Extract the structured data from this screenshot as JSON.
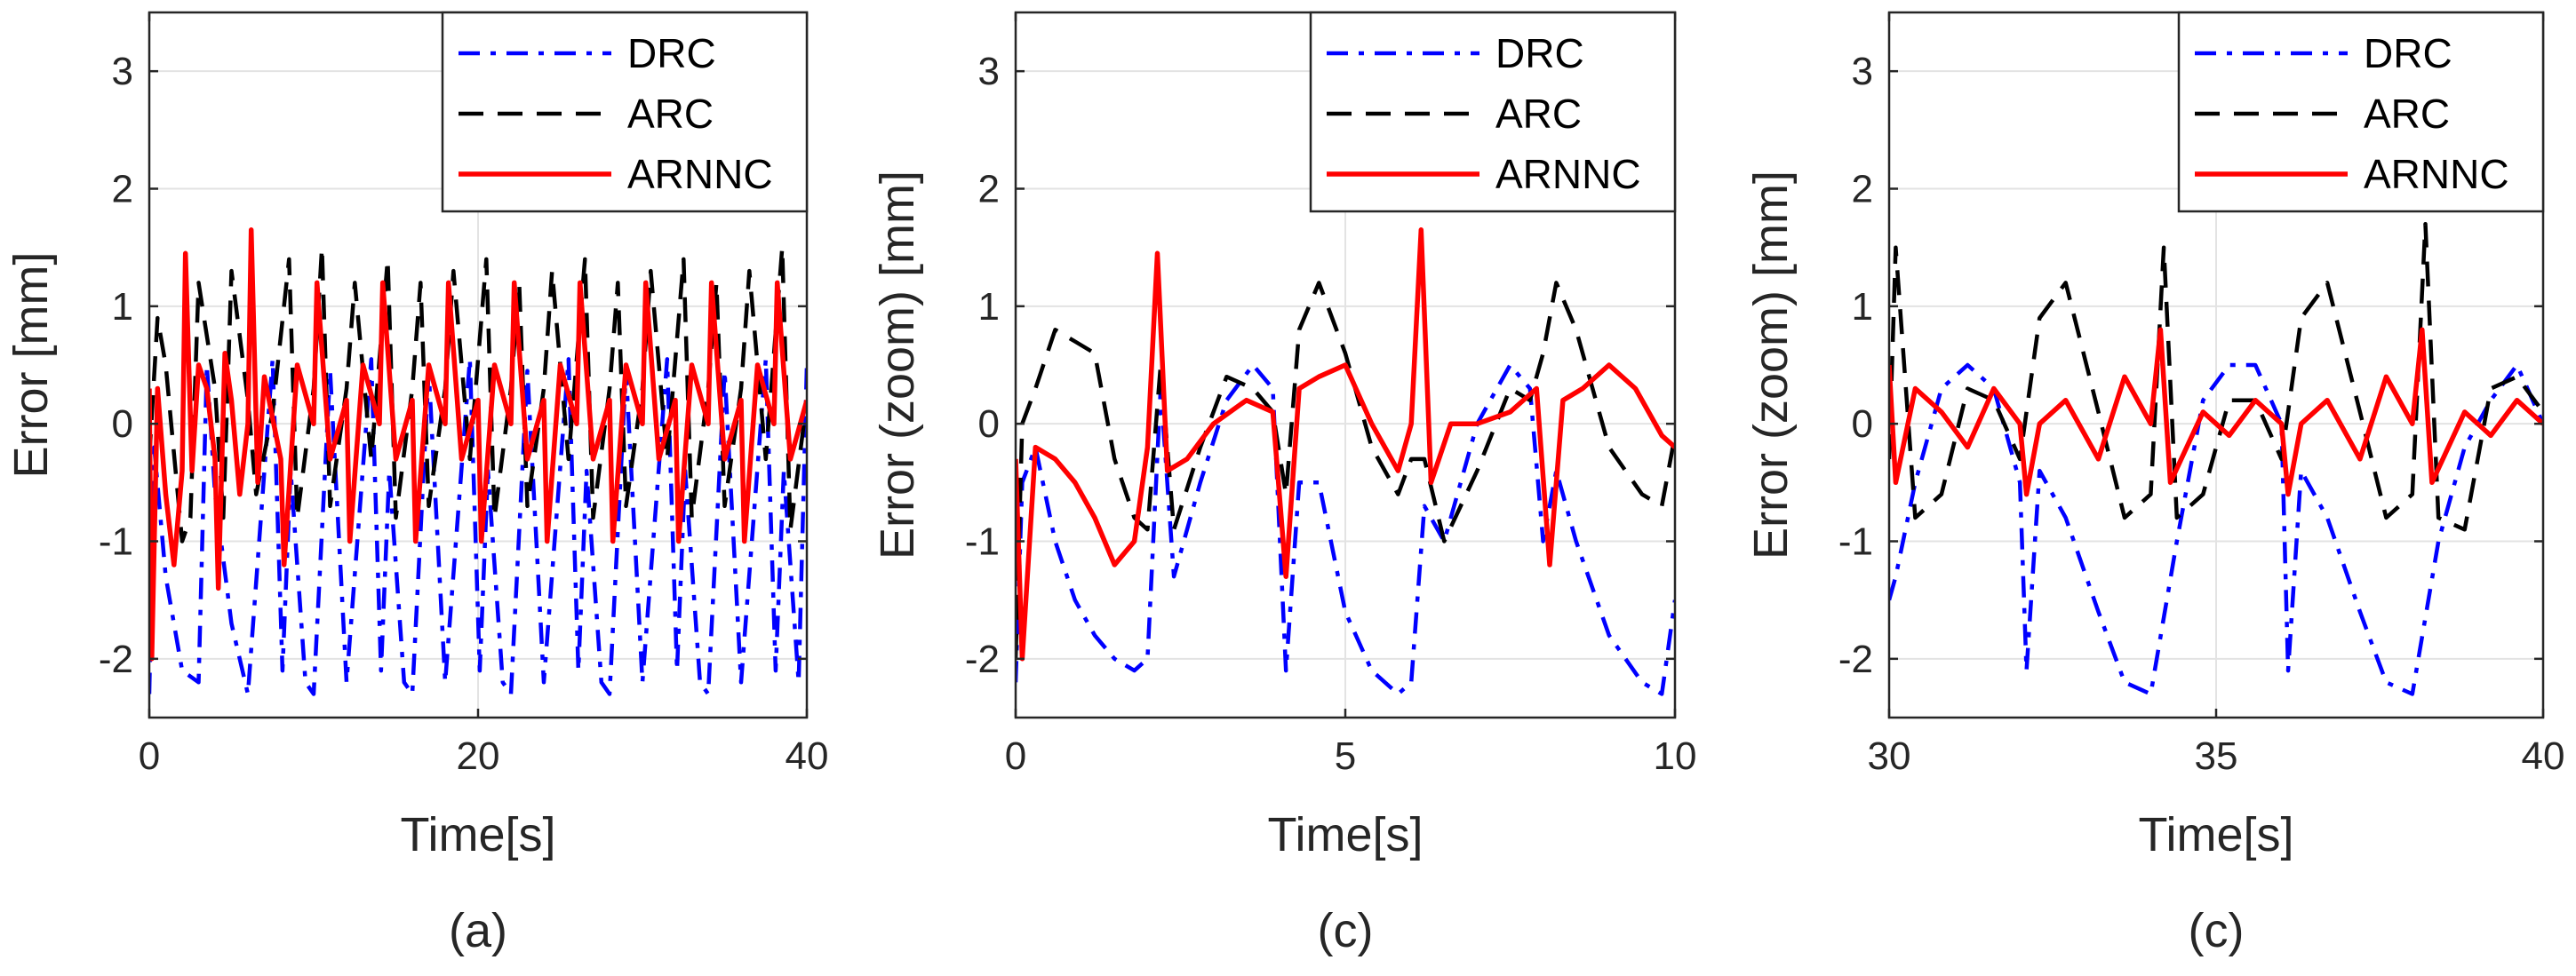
{
  "chart_data": [
    {
      "type": "line",
      "panel_label": "(a)",
      "xlabel": "Time[s]",
      "ylabel": "Error [mm]",
      "xlim": [
        0,
        40
      ],
      "ylim": [
        -2.5,
        3.5
      ],
      "xticks": [
        0,
        20,
        40
      ],
      "xtick_labels": [
        "0",
        "20",
        "40"
      ],
      "yticks": [
        -2,
        -1,
        0,
        1,
        2,
        3
      ],
      "ytick_labels": [
        "-2",
        "-1",
        "0",
        "1",
        "2",
        "3"
      ],
      "grid": true,
      "legend_position": "top-right",
      "legend": [
        "DRC",
        "ARC",
        "ARNNC"
      ],
      "series": [
        {
          "name": "DRC",
          "color": "#0000ff",
          "style": "dash-dot",
          "x": [
            0,
            0.3,
            1,
            2,
            3,
            3.5,
            4,
            5,
            6,
            7.5,
            8.1,
            8.6,
            9.5,
            10,
            11,
            12,
            13.5,
            14.1,
            14.6,
            15.5,
            16,
            17,
            18,
            19.5,
            20.1,
            20.6,
            21.5,
            22,
            23,
            24,
            25.5,
            26.1,
            26.6,
            27.5,
            28,
            29,
            30,
            31.5,
            32.1,
            32.6,
            33.5,
            34,
            35,
            36,
            37.5,
            38.1,
            38.6,
            39.5,
            40
          ],
          "y": [
            -2.3,
            -0.2,
            -1.3,
            -2.1,
            -2.2,
            0.5,
            -0.6,
            -1.7,
            -2.3,
            0.55,
            -2.1,
            -0.4,
            -2.2,
            -2.3,
            0.45,
            -2.2,
            0.55,
            -2.1,
            -0.4,
            -2.2,
            -2.3,
            0.45,
            -2.2,
            0.55,
            -2.1,
            -0.4,
            -2.2,
            -2.3,
            0.45,
            -2.2,
            0.55,
            -2.1,
            -0.4,
            -2.2,
            -2.3,
            0.45,
            -2.2,
            0.55,
            -2.1,
            -0.4,
            -2.2,
            -2.3,
            0.45,
            -2.2,
            0.55,
            -2.1,
            -0.4,
            -2.2,
            0.5
          ]
        },
        {
          "name": "ARC",
          "color": "#000000",
          "style": "dashed",
          "x": [
            0,
            0.5,
            1,
            2,
            2.5,
            3,
            4,
            4.5,
            5,
            6,
            6.5,
            7.5,
            8.5,
            9,
            10,
            10.5,
            11,
            12,
            12.5,
            13.5,
            14.5,
            15,
            16,
            16.5,
            17,
            18,
            18.5,
            19.5,
            20.5,
            21,
            22,
            22.5,
            23,
            24,
            24.5,
            25.5,
            26.5,
            27,
            28,
            28.5,
            29,
            30,
            30.5,
            31.5,
            32.5,
            33,
            34,
            34.5,
            35,
            36,
            36.5,
            37.5,
            38.5,
            39,
            40
          ],
          "y": [
            -0.3,
            0.9,
            0.5,
            -1.0,
            -0.8,
            1.2,
            0.3,
            -0.8,
            1.3,
            0.2,
            -0.6,
            0.1,
            1.4,
            -0.8,
            0.3,
            1.5,
            -0.7,
            0.3,
            1.2,
            -0.3,
            1.4,
            -0.8,
            0.3,
            1.2,
            -0.7,
            0.3,
            1.3,
            -0.3,
            1.4,
            -0.8,
            0.3,
            1.2,
            -0.7,
            0.3,
            1.3,
            -0.3,
            1.4,
            -0.8,
            0.3,
            1.2,
            -0.7,
            0.3,
            1.3,
            -0.3,
            1.4,
            -0.8,
            0.3,
            1.2,
            -0.7,
            0.3,
            1.3,
            -0.3,
            1.5,
            -0.9,
            0.2
          ]
        },
        {
          "name": "ARNNC",
          "color": "#ff0000",
          "style": "solid",
          "x": [
            0,
            0.15,
            0.5,
            1,
            1.5,
            2,
            2.2,
            2.6,
            3,
            3.5,
            4,
            4.2,
            4.6,
            5,
            5.5,
            6,
            6.2,
            6.6,
            7,
            8,
            8.2,
            9,
            10,
            10.2,
            11,
            12,
            12.2,
            13,
            14,
            14.2,
            15,
            16,
            16.2,
            17,
            18,
            18.2,
            19,
            20,
            20.2,
            21,
            22,
            22.2,
            23,
            24,
            24.2,
            25,
            26,
            26.2,
            27,
            28,
            28.2,
            29,
            30,
            30.2,
            31,
            32,
            32.2,
            33,
            34,
            34.2,
            35,
            36,
            36.2,
            37,
            38,
            38.2,
            39,
            40
          ],
          "y": [
            0.3,
            -2.0,
            0.3,
            -0.6,
            -1.2,
            -0.4,
            1.45,
            -0.4,
            0.5,
            0.3,
            -0.3,
            -1.4,
            0.6,
            0.2,
            -0.6,
            0.0,
            1.65,
            -0.5,
            0.4,
            -0.3,
            -1.2,
            0.5,
            0.0,
            1.2,
            -0.3,
            0.2,
            -1.0,
            0.5,
            0.0,
            1.2,
            -0.3,
            0.2,
            -1.0,
            0.5,
            0.0,
            1.2,
            -0.3,
            0.2,
            -1.0,
            0.5,
            0.0,
            1.2,
            -0.3,
            0.2,
            -1.0,
            0.5,
            0.0,
            1.2,
            -0.3,
            0.2,
            -1.0,
            0.5,
            0.0,
            1.2,
            -0.3,
            0.2,
            -1.0,
            0.5,
            0.0,
            1.2,
            -0.3,
            0.2,
            -1.0,
            0.5,
            0.0,
            1.2,
            -0.3,
            0.2
          ]
        }
      ]
    },
    {
      "type": "line",
      "panel_label": "(c)",
      "xlabel": "Time[s]",
      "ylabel": "Error (zoom) [mm]",
      "xlim": [
        0,
        10
      ],
      "ylim": [
        -2.5,
        3.5
      ],
      "xticks": [
        0,
        5,
        10
      ],
      "xtick_labels": [
        "0",
        "5",
        "10"
      ],
      "yticks": [
        -2,
        -1,
        0,
        1,
        2,
        3
      ],
      "ytick_labels": [
        "-2",
        "-1",
        "0",
        "1",
        "2",
        "3"
      ],
      "grid": true,
      "legend_position": "top-right",
      "legend": [
        "DRC",
        "ARC",
        "ARNNC"
      ],
      "series": [
        {
          "name": "DRC",
          "color": "#0000ff",
          "style": "dash-dot",
          "x": [
            0,
            0.1,
            0.3,
            0.6,
            0.9,
            1.2,
            1.5,
            1.8,
            2.0,
            2.2,
            2.4,
            2.8,
            3.2,
            3.6,
            3.9,
            4.1,
            4.3,
            4.6,
            5.0,
            5.4,
            5.8,
            6.0,
            6.2,
            6.5,
            7.0,
            7.5,
            7.8,
            8.0,
            8.2,
            8.5,
            9.0,
            9.5,
            9.8,
            10
          ],
          "y": [
            -2.2,
            -0.5,
            -0.2,
            -1.0,
            -1.5,
            -1.8,
            -2.0,
            -2.1,
            -2.0,
            0.3,
            -1.3,
            -0.5,
            0.2,
            0.5,
            0.3,
            -2.1,
            -0.5,
            -0.5,
            -1.6,
            -2.1,
            -2.3,
            -2.2,
            -0.7,
            -1.0,
            0.0,
            0.5,
            0.3,
            -1.0,
            -0.4,
            -1.0,
            -1.8,
            -2.2,
            -2.3,
            -1.5
          ]
        },
        {
          "name": "ARC",
          "color": "#000000",
          "style": "dashed",
          "x": [
            0,
            0.1,
            0.3,
            0.6,
            0.9,
            1.2,
            1.5,
            1.8,
            2.0,
            2.2,
            2.4,
            2.8,
            3.2,
            3.6,
            3.9,
            4.1,
            4.3,
            4.6,
            5.0,
            5.4,
            5.8,
            6.0,
            6.2,
            6.5,
            7.0,
            7.5,
            7.8,
            8.0,
            8.2,
            8.5,
            9.0,
            9.5,
            9.8,
            10
          ],
          "y": [
            -2.0,
            0.0,
            0.3,
            0.8,
            0.7,
            0.6,
            -0.3,
            -0.8,
            -0.9,
            0.5,
            -0.9,
            -0.2,
            0.4,
            0.3,
            0.1,
            -0.6,
            0.8,
            1.2,
            0.6,
            -0.2,
            -0.6,
            -0.3,
            -0.3,
            -1.0,
            -0.4,
            0.3,
            0.2,
            0.6,
            1.2,
            0.8,
            -0.2,
            -0.6,
            -0.7,
            -0.1
          ]
        },
        {
          "name": "ARNNC",
          "color": "#ff0000",
          "style": "solid",
          "x": [
            0,
            0.1,
            0.3,
            0.6,
            0.9,
            1.2,
            1.5,
            1.8,
            2.0,
            2.15,
            2.3,
            2.6,
            3.0,
            3.5,
            3.9,
            4.1,
            4.3,
            4.6,
            5.0,
            5.4,
            5.8,
            6.0,
            6.15,
            6.3,
            6.6,
            7.0,
            7.5,
            7.9,
            8.1,
            8.3,
            8.6,
            9.0,
            9.4,
            9.8,
            10
          ],
          "y": [
            -0.3,
            -2.0,
            -0.2,
            -0.3,
            -0.5,
            -0.8,
            -1.2,
            -1.0,
            -0.2,
            1.45,
            -0.4,
            -0.3,
            0.0,
            0.2,
            0.1,
            -1.3,
            0.3,
            0.4,
            0.5,
            0.0,
            -0.4,
            0.0,
            1.65,
            -0.5,
            0.0,
            0.0,
            0.1,
            0.3,
            -1.2,
            0.2,
            0.3,
            0.5,
            0.3,
            -0.1,
            -0.2
          ]
        }
      ]
    },
    {
      "type": "line",
      "panel_label": "(c)",
      "xlabel": "Time[s]",
      "ylabel": "Error (zoom) [mm]",
      "xlim": [
        30,
        40
      ],
      "ylim": [
        -2.5,
        3.5
      ],
      "xticks": [
        30,
        35,
        40
      ],
      "xtick_labels": [
        "30",
        "35",
        "40"
      ],
      "yticks": [
        -2,
        -1,
        0,
        1,
        2,
        3
      ],
      "ytick_labels": [
        "-2",
        "-1",
        "0",
        "1",
        "2",
        "3"
      ],
      "grid": true,
      "legend_position": "top-right",
      "legend": [
        "DRC",
        "ARC",
        "ARNNC"
      ],
      "series": [
        {
          "name": "DRC",
          "color": "#0000ff",
          "style": "dash-dot",
          "x": [
            30,
            30.1,
            30.4,
            30.8,
            31.2,
            31.6,
            32.0,
            32.1,
            32.3,
            32.7,
            33.2,
            33.6,
            34.0,
            34.4,
            34.8,
            35.2,
            35.6,
            36.0,
            36.1,
            36.3,
            36.7,
            37.2,
            37.6,
            38.0,
            38.4,
            38.8,
            39.2,
            39.6,
            40
          ],
          "y": [
            -1.5,
            -1.3,
            -0.5,
            0.3,
            0.5,
            0.3,
            -0.5,
            -2.1,
            -0.4,
            -0.8,
            -1.6,
            -2.2,
            -2.3,
            -1.0,
            0.2,
            0.5,
            0.5,
            0.0,
            -2.1,
            -0.4,
            -0.8,
            -1.6,
            -2.2,
            -2.3,
            -1.0,
            -0.2,
            0.2,
            0.5,
            0.0
          ]
        },
        {
          "name": "ARC",
          "color": "#000000",
          "style": "dashed",
          "x": [
            30,
            30.1,
            30.4,
            30.8,
            31.2,
            31.6,
            32.0,
            32.3,
            32.7,
            33.2,
            33.6,
            34.0,
            34.2,
            34.4,
            34.8,
            35.2,
            35.6,
            36.0,
            36.3,
            36.7,
            37.2,
            37.6,
            38.0,
            38.2,
            38.4,
            38.8,
            39.2,
            39.6,
            40
          ],
          "y": [
            -0.3,
            1.5,
            -0.8,
            -0.6,
            0.3,
            0.2,
            -0.3,
            0.9,
            1.2,
            0.1,
            -0.8,
            -0.6,
            1.5,
            -0.8,
            -0.6,
            0.2,
            0.2,
            -0.3,
            0.9,
            1.2,
            0.1,
            -0.8,
            -0.6,
            1.7,
            -0.8,
            -0.9,
            0.3,
            0.4,
            0.1
          ]
        },
        {
          "name": "ARNNC",
          "color": "#ff0000",
          "style": "solid",
          "x": [
            30,
            30.1,
            30.4,
            30.8,
            31.2,
            31.6,
            32.0,
            32.1,
            32.3,
            32.7,
            33.2,
            33.6,
            34.0,
            34.15,
            34.3,
            34.8,
            35.2,
            35.6,
            36.0,
            36.1,
            36.3,
            36.7,
            37.2,
            37.6,
            38.0,
            38.15,
            38.3,
            38.8,
            39.2,
            39.6,
            40
          ],
          "y": [
            0.5,
            -0.5,
            0.3,
            0.1,
            -0.2,
            0.3,
            0.0,
            -0.6,
            0.0,
            0.2,
            -0.3,
            0.4,
            0.0,
            0.8,
            -0.5,
            0.1,
            -0.1,
            0.2,
            0.0,
            -0.6,
            0.0,
            0.2,
            -0.3,
            0.4,
            0.0,
            0.8,
            -0.5,
            0.1,
            -0.1,
            0.2,
            0.0
          ]
        }
      ]
    }
  ]
}
